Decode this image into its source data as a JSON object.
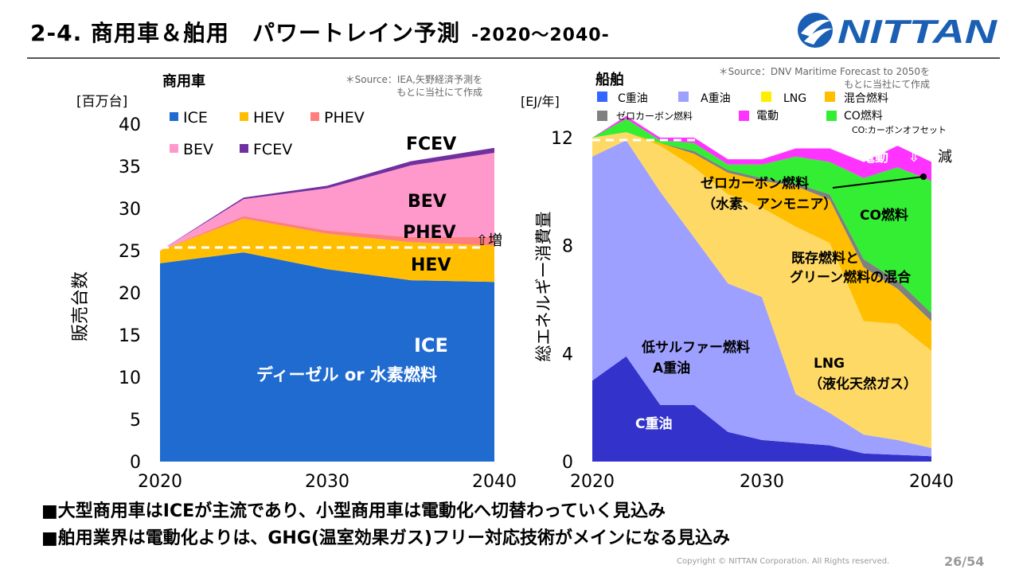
{
  "header": {
    "title": "2-4. 商用車＆舶用　パワートレイン予測",
    "title_suffix": "-2020～2040-",
    "logo_text": "NITTAN"
  },
  "left_chart": {
    "title": "商用車",
    "source_line1": "＊Source：IEA,矢野経済予測を",
    "source_line2": "もとに当社にて作成",
    "unit_label": "[百万台]",
    "ylabel": "販売台数",
    "trend_note": "⇧増",
    "legend_items": [
      "ICE",
      "HEV",
      "PHEV",
      "BEV",
      "FCEV"
    ],
    "area_labels": {
      "fcev": "FCEV",
      "bev": "BEV",
      "phev": "PHEV",
      "hev": "HEV",
      "ice": "ICE",
      "ice_sub": "ディーゼル or 水素燃料"
    }
  },
  "right_chart": {
    "title": "船舶",
    "source_line1": "＊Source：DNV Maritime Forecast to 2050を",
    "source_line2": "もとに当社にて作成",
    "unit_label": "[EJ/年]",
    "ylabel": "総エネルギー消費量",
    "legend_items": [
      "C重油",
      "A重油",
      "LNG",
      "混合燃料",
      "ゼロカーボン燃料",
      "電動",
      "CO燃料"
    ],
    "legend_note": "CO:カーボンオフセット",
    "trend_note": "減",
    "down_arrow": "⇩",
    "area_labels": {
      "electric": "電動",
      "zero_carbon_1": "ゼロカーボン燃料",
      "zero_carbon_2": "（水素、アンモニア）",
      "co_fuel": "CO燃料",
      "mixed_1": "既存燃料と",
      "mixed_2": "グリーン燃料の混合",
      "lsfo_1": "低サルファー燃料",
      "lsfo_2": "A重油",
      "lng_1": "LNG",
      "lng_2": "（液化天然ガス）",
      "hfo": "C重油"
    }
  },
  "bullets": [
    "■大型商用車はICEが主流であり、小型商用車は電動化へ切替わっていく見込み",
    "■舶用業界は電動化よりは、GHG(温室効果ガス)フリー対応技術がメインになる見込み"
  ],
  "footer": {
    "copyright": "Copyright © NITTAN Corporation. All Rights reserved.",
    "page": "26/54"
  },
  "colors": {
    "ice": "#1f6bd0",
    "hev": "#ffbf00",
    "phev": "#ff7f7f",
    "bev": "#ff99cc",
    "fcev": "#7030a0",
    "hfo": "#3333cc",
    "mgo": "#9ea0ff",
    "lng": "#ffd966",
    "mixed": "#ffbf00",
    "zero": "#808080",
    "electric": "#ff33ff",
    "co": "#33ee33"
  },
  "chart_data": [
    {
      "type": "area",
      "stacked": true,
      "title": "商用車",
      "ylabel": "販売台数 [百万台]",
      "x": [
        2020,
        2025,
        2030,
        2035,
        2040
      ],
      "xticks": [
        "2020",
        "2030",
        "2040"
      ],
      "yticks": [
        "0",
        "5",
        "10",
        "15",
        "20",
        "25",
        "30",
        "35",
        "40"
      ],
      "ylim": [
        0,
        40
      ],
      "xlim": [
        2020,
        2040
      ],
      "series": [
        {
          "name": "ICE",
          "values": [
            23.5,
            24.8,
            22.8,
            21.5,
            21.3
          ]
        },
        {
          "name": "HEV",
          "values": [
            1.5,
            4.0,
            4.2,
            4.5,
            4.3
          ]
        },
        {
          "name": "PHEV",
          "values": [
            0.0,
            0.3,
            0.4,
            0.6,
            1.0
          ]
        },
        {
          "name": "BEV",
          "values": [
            0.0,
            2.0,
            5.0,
            8.5,
            10.0
          ]
        },
        {
          "name": "FCEV",
          "values": [
            0.0,
            0.2,
            0.3,
            0.5,
            0.6
          ]
        }
      ]
    },
    {
      "type": "area",
      "stacked": true,
      "title": "船舶",
      "ylabel": "総エネルギー消費量 [EJ/年]",
      "x": [
        2020,
        2022,
        2024,
        2026,
        2028,
        2030,
        2032,
        2034,
        2036,
        2038,
        2040
      ],
      "xticks": [
        "2020",
        "2030",
        "2040"
      ],
      "yticks": [
        "0",
        "4",
        "8",
        "12"
      ],
      "ylim": [
        0,
        13
      ],
      "xlim": [
        2020,
        2040
      ],
      "series": [
        {
          "name": "C重油",
          "values": [
            3.0,
            3.9,
            2.1,
            2.1,
            1.1,
            0.8,
            0.7,
            0.6,
            0.3,
            0.25,
            0.2
          ]
        },
        {
          "name": "A重油",
          "values": [
            8.3,
            8.0,
            7.9,
            6.2,
            5.5,
            5.3,
            1.8,
            1.2,
            0.7,
            0.55,
            0.3
          ]
        },
        {
          "name": "LNG",
          "values": [
            0.7,
            0.3,
            1.7,
            2.6,
            3.3,
            3.3,
            6.2,
            6.3,
            4.2,
            4.3,
            3.6
          ]
        },
        {
          "name": "混合燃料",
          "values": [
            0.0,
            0.0,
            0.1,
            0.5,
            0.8,
            1.0,
            1.5,
            1.6,
            2.0,
            1.3,
            1.1
          ]
        },
        {
          "name": "ゼロカーボン燃料",
          "values": [
            0.0,
            0.0,
            0.0,
            0.1,
            0.1,
            0.1,
            0.1,
            0.2,
            0.3,
            0.3,
            0.3
          ]
        },
        {
          "name": "CO燃料",
          "values": [
            0.0,
            0.5,
            0.1,
            0.3,
            0.2,
            0.5,
            1.0,
            1.2,
            3.0,
            4.2,
            4.9
          ]
        },
        {
          "name": "電動",
          "values": [
            0.0,
            0.1,
            0.1,
            0.2,
            0.2,
            0.2,
            0.3,
            0.5,
            0.6,
            0.8,
            0.7
          ]
        }
      ]
    }
  ]
}
